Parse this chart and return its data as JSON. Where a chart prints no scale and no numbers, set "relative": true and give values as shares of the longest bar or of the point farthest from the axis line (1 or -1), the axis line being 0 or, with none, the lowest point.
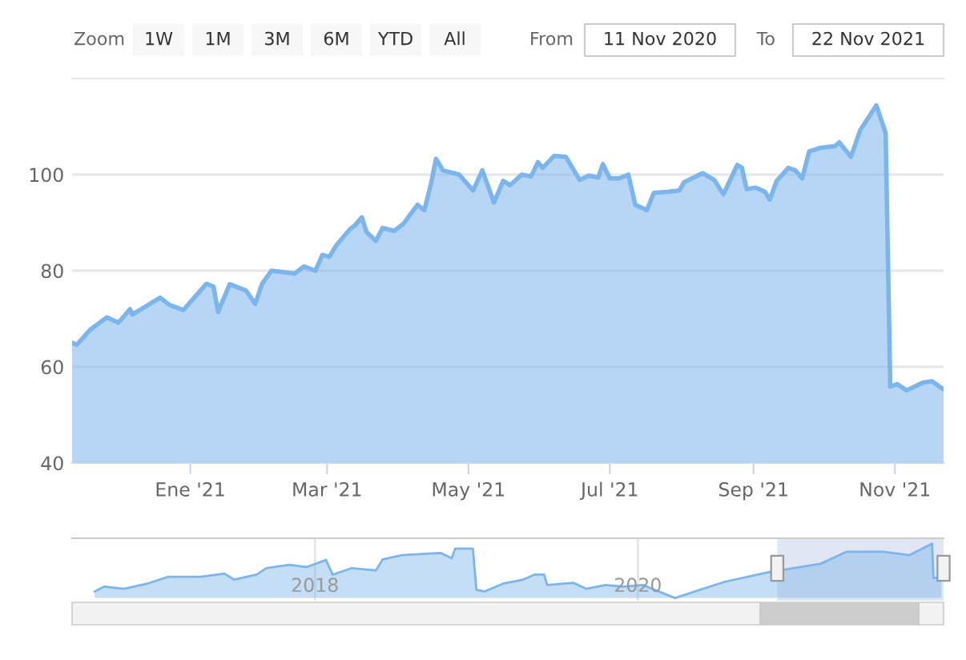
{
  "chart_data": [
    {
      "type": "area",
      "annotations": [
        "Zoom",
        "1W",
        "1M",
        "3M",
        "6M",
        "YTD",
        "All",
        "From",
        "11 Nov 2020",
        "To",
        "22 Nov 2021"
      ],
      "x": [
        "2020-11-11",
        "2020-11-13",
        "2020-11-19",
        "2020-11-26",
        "2020-12-01",
        "2020-12-06",
        "2020-12-07",
        "2020-12-19",
        "2020-12-23",
        "2020-12-29",
        "2021-01-08",
        "2021-01-11",
        "2021-01-13",
        "2021-01-18",
        "2021-01-25",
        "2021-01-29",
        "2021-02-01",
        "2021-02-05",
        "2021-02-15",
        "2021-02-19",
        "2021-02-24",
        "2021-02-27",
        "2021-03-02",
        "2021-03-05",
        "2021-03-11",
        "2021-03-13",
        "2021-03-16",
        "2021-03-18",
        "2021-03-22",
        "2021-03-25",
        "2021-03-30",
        "2021-04-03",
        "2021-04-09",
        "2021-04-12",
        "2021-04-15",
        "2021-04-17",
        "2021-04-20",
        "2021-04-27",
        "2021-05-03",
        "2021-05-07",
        "2021-05-12",
        "2021-05-16",
        "2021-05-19",
        "2021-05-24",
        "2021-05-28",
        "2021-05-31",
        "2021-06-02",
        "2021-06-07",
        "2021-06-12",
        "2021-06-18",
        "2021-06-22",
        "2021-06-26",
        "2021-06-28",
        "2021-07-01",
        "2021-07-05",
        "2021-07-09",
        "2021-07-12",
        "2021-07-17",
        "2021-07-20",
        "2021-07-26",
        "2021-07-31",
        "2021-08-02",
        "2021-08-10",
        "2021-08-15",
        "2021-08-19",
        "2021-08-25",
        "2021-08-27",
        "2021-08-29",
        "2021-09-02",
        "2021-09-06",
        "2021-09-08",
        "2021-09-11",
        "2021-09-16",
        "2021-09-19",
        "2021-09-22",
        "2021-09-25",
        "2021-09-30",
        "2021-10-06",
        "2021-10-08",
        "2021-10-13",
        "2021-10-17",
        "2021-10-24",
        "2021-10-28",
        "2021-10-30",
        "2021-11-02",
        "2021-11-06",
        "2021-11-13",
        "2021-11-17",
        "2021-11-22"
      ],
      "series": [
        {
          "color": "#7cb5ec",
          "values": [
            65.0,
            64.6,
            67.8,
            70.3,
            69.2,
            72.0,
            70.9,
            74.4,
            72.9,
            71.8,
            77.3,
            76.7,
            71.4,
            77.2,
            75.9,
            73.1,
            77.3,
            80.0,
            79.4,
            80.9,
            80.0,
            83.3,
            82.9,
            85.3,
            88.7,
            89.4,
            91.1,
            88.1,
            86.2,
            88.9,
            88.3,
            89.8,
            93.7,
            92.6,
            98.4,
            103.3,
            100.9,
            100.0,
            96.7,
            100.9,
            94.2,
            98.7,
            97.8,
            100.0,
            99.6,
            102.6,
            101.4,
            103.9,
            103.7,
            98.9,
            99.8,
            99.4,
            102.2,
            99.2,
            99.2,
            100.0,
            93.7,
            92.6,
            96.2,
            96.4,
            96.7,
            98.4,
            100.3,
            98.9,
            95.9,
            102.0,
            101.4,
            97.0,
            97.3,
            96.4,
            94.8,
            98.7,
            101.4,
            100.9,
            99.2,
            104.8,
            105.6,
            105.9,
            106.7,
            103.7,
            109.2,
            114.4,
            108.7,
            55.9,
            56.4,
            55.1,
            56.7,
            57.0,
            55.3
          ]
        }
      ],
      "xlim": [
        "2020-11-11",
        "2021-11-22"
      ],
      "xticks": [
        {
          "value": "2021-01-01",
          "label": "Ene '21"
        },
        {
          "value": "2021-03-01",
          "label": "Mar '21"
        },
        {
          "value": "2021-05-01",
          "label": "May '21"
        },
        {
          "value": "2021-07-01",
          "label": "Jul '21"
        },
        {
          "value": "2021-09-01",
          "label": "Sep '21"
        },
        {
          "value": "2021-11-01",
          "label": "Nov '21"
        }
      ],
      "ylim": [
        40,
        120
      ],
      "yticks": [
        40,
        60,
        80,
        100
      ],
      "grid": "y"
    },
    {
      "type": "area",
      "relative": true,
      "tick_labels": "x",
      "grid": "x",
      "x": [
        "2016-08-21",
        "2016-09-12",
        "2016-10-26",
        "2016-12-20",
        "2017-02-03",
        "2017-04-16",
        "2017-06-10",
        "2017-07-02",
        "2017-08-22",
        "2017-09-13",
        "2017-11-03",
        "2017-12-13",
        "2018-01-26",
        "2018-02-10",
        "2018-03-25",
        "2018-05-19",
        "2018-06-03",
        "2018-07-16",
        "2018-10-12",
        "2018-11-06",
        "2018-11-14",
        "2018-12-24",
        "2019-01-01",
        "2019-01-19",
        "2019-03-04",
        "2019-04-17",
        "2019-05-12",
        "2019-06-03",
        "2019-06-10",
        "2019-08-08",
        "2019-09-06",
        "2019-10-20",
        "2019-11-29",
        "2020-01-12",
        "2020-03-25",
        "2020-05-08",
        "2020-07-16",
        "2020-09-27",
        "2020-10-20",
        "2021-02-17",
        "2021-04-16",
        "2021-07-09",
        "2021-09-06",
        "2021-10-27",
        "2021-10-30",
        "2021-11-17"
      ],
      "series": [
        {
          "color": "#7cb5ec",
          "values": [
            0.12,
            0.21,
            0.17,
            0.27,
            0.39,
            0.39,
            0.45,
            0.34,
            0.43,
            0.55,
            0.61,
            0.57,
            0.7,
            0.43,
            0.55,
            0.51,
            0.71,
            0.79,
            0.83,
            0.73,
            0.91,
            0.91,
            0.15,
            0.12,
            0.27,
            0.34,
            0.43,
            0.43,
            0.24,
            0.28,
            0.17,
            0.24,
            0.21,
            0.24,
            0.0,
            0.12,
            0.3,
            0.43,
            0.47,
            0.63,
            0.85,
            0.85,
            0.79,
            1.0,
            0.37,
            0.37
          ]
        }
      ],
      "xlim": [
        "2016-07-01",
        "2021-11-22"
      ],
      "xticks": [
        {
          "value": "2018-01-01",
          "label": "2018"
        },
        {
          "value": "2020-01-01",
          "label": "2020"
        }
      ],
      "bands": [
        {
          "axis": "x",
          "from": "2020-11-11",
          "to": "2021-11-22",
          "color": "#ccd6eb"
        }
      ]
    }
  ]
}
